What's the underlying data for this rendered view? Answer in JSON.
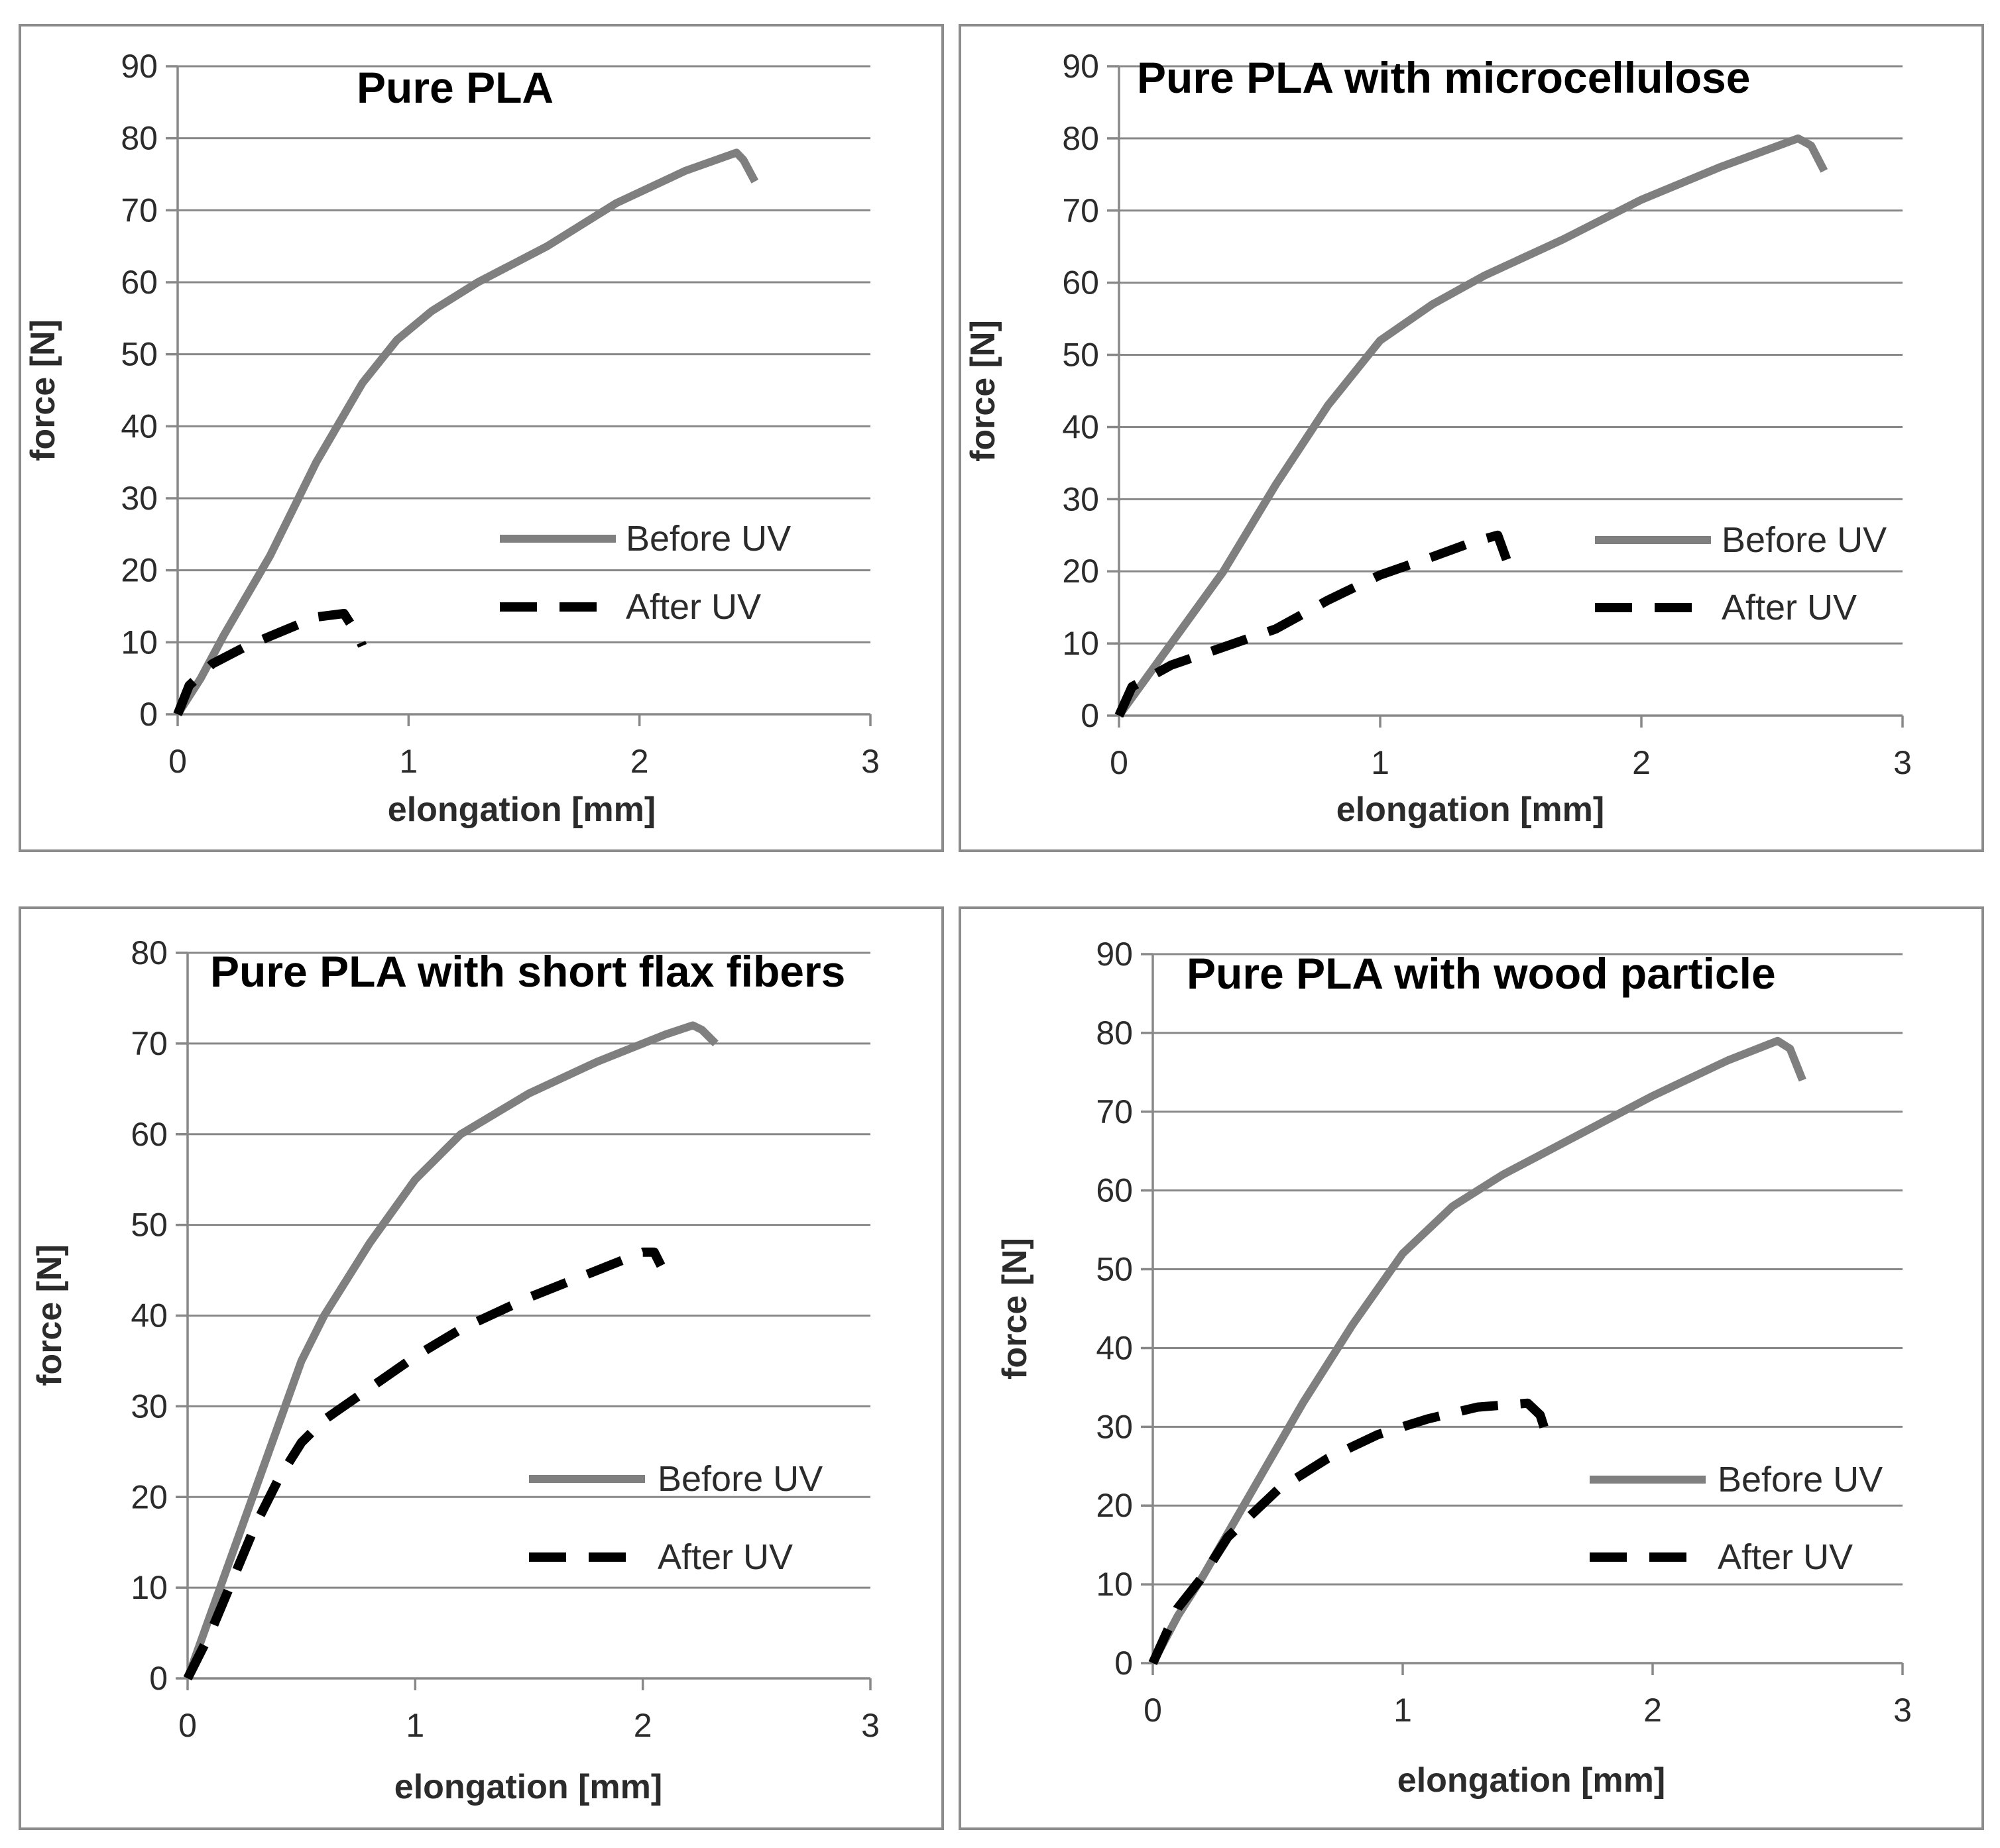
{
  "figure": {
    "colors": {
      "before_uv": "#7f7f7f",
      "after_uv": "#000000"
    }
  },
  "chart_data": [
    {
      "type": "line",
      "title": "Pure PLA",
      "xlabel": "elongation [mm]",
      "ylabel": "force [N]",
      "xlim": [
        0,
        3
      ],
      "ylim": [
        0,
        90
      ],
      "xticks": [
        "0",
        "1",
        "2",
        "3"
      ],
      "yticks": [
        "0",
        "10",
        "20",
        "30",
        "40",
        "50",
        "60",
        "70",
        "80",
        "90"
      ],
      "legend": [
        "Before UV",
        "After UV"
      ],
      "series": [
        {
          "name": "Before UV",
          "style": "solid",
          "x": [
            0,
            0.1,
            0.2,
            0.4,
            0.6,
            0.8,
            0.95,
            1.1,
            1.3,
            1.6,
            1.9,
            2.2,
            2.42,
            2.45,
            2.5
          ],
          "y": [
            0,
            5,
            11,
            22,
            35,
            46,
            52,
            56,
            60,
            65,
            71,
            75.5,
            78,
            77,
            74
          ]
        },
        {
          "name": "After UV",
          "style": "dashed",
          "x": [
            0,
            0.05,
            0.15,
            0.3,
            0.45,
            0.6,
            0.72,
            0.78,
            0.8
          ],
          "y": [
            0,
            4,
            7,
            9.5,
            11.5,
            13.5,
            14,
            11,
            9.5
          ]
        }
      ]
    },
    {
      "type": "line",
      "title": "Pure PLA with microcellulose",
      "xlabel": "elongation [mm]",
      "ylabel": "force [N]",
      "xlim": [
        0,
        3
      ],
      "ylim": [
        0,
        90
      ],
      "xticks": [
        "0",
        "1",
        "2",
        "3"
      ],
      "yticks": [
        "0",
        "10",
        "20",
        "30",
        "40",
        "50",
        "60",
        "70",
        "80",
        "90"
      ],
      "legend": [
        "Before UV",
        "After UV"
      ],
      "series": [
        {
          "name": "Before UV",
          "style": "solid",
          "x": [
            0,
            0.1,
            0.2,
            0.4,
            0.6,
            0.8,
            1.0,
            1.2,
            1.4,
            1.7,
            2.0,
            2.3,
            2.6,
            2.65,
            2.7
          ],
          "y": [
            0,
            5,
            10,
            20,
            32,
            43,
            52,
            57,
            61,
            66,
            71.5,
            76,
            80,
            79,
            75.5
          ]
        },
        {
          "name": "After UV",
          "style": "dashed",
          "x": [
            0,
            0.05,
            0.2,
            0.4,
            0.6,
            0.8,
            1.0,
            1.2,
            1.35,
            1.45,
            1.5
          ],
          "y": [
            0,
            4,
            7,
            9.5,
            12,
            16,
            19.5,
            22,
            24,
            25,
            20
          ]
        }
      ]
    },
    {
      "type": "line",
      "title": "Pure PLA with short flax fibers",
      "xlabel": "elongation [mm]",
      "ylabel": "force [N]",
      "xlim": [
        0,
        3
      ],
      "ylim": [
        0,
        80
      ],
      "xticks": [
        "0",
        "1",
        "2",
        "3"
      ],
      "yticks": [
        "0",
        "10",
        "20",
        "30",
        "40",
        "50",
        "60",
        "70",
        "80"
      ],
      "legend": [
        "Before UV",
        "After UV"
      ],
      "series": [
        {
          "name": "Before UV",
          "style": "solid",
          "x": [
            0,
            0.1,
            0.2,
            0.3,
            0.4,
            0.5,
            0.6,
            0.8,
            1.0,
            1.2,
            1.5,
            1.8,
            2.1,
            2.22,
            2.26,
            2.32
          ],
          "y": [
            0,
            7,
            14,
            21,
            28,
            35,
            40,
            48,
            55,
            60,
            64.5,
            68,
            71,
            72,
            71.5,
            70
          ]
        },
        {
          "name": "After UV",
          "style": "dashed",
          "x": [
            0,
            0.1,
            0.2,
            0.3,
            0.4,
            0.5,
            0.6,
            0.8,
            1.0,
            1.2,
            1.5,
            1.8,
            2.0,
            2.05,
            2.08
          ],
          "y": [
            0,
            5,
            11,
            17,
            22,
            26,
            28.5,
            32,
            35.5,
            38.5,
            42,
            45,
            47,
            47,
            45.5
          ]
        }
      ]
    },
    {
      "type": "line",
      "title": "Pure PLA with wood particle",
      "xlabel": "elongation [mm]",
      "ylabel": "force [N]",
      "xlim": [
        0,
        3
      ],
      "ylim": [
        0,
        90
      ],
      "xticks": [
        "0",
        "1",
        "2",
        "3"
      ],
      "yticks": [
        "0",
        "10",
        "20",
        "30",
        "40",
        "50",
        "60",
        "70",
        "80",
        "90"
      ],
      "legend": [
        "Before UV",
        "After UV"
      ],
      "series": [
        {
          "name": "Before UV",
          "style": "solid",
          "x": [
            0,
            0.1,
            0.2,
            0.4,
            0.6,
            0.8,
            1.0,
            1.2,
            1.4,
            1.7,
            2.0,
            2.3,
            2.5,
            2.55,
            2.6
          ],
          "y": [
            0,
            6,
            11,
            22,
            33,
            43,
            52,
            58,
            62,
            67,
            72,
            76.5,
            79,
            78,
            74
          ]
        },
        {
          "name": "After UV",
          "style": "dashed",
          "x": [
            0,
            0.1,
            0.2,
            0.3,
            0.5,
            0.7,
            0.9,
            1.1,
            1.3,
            1.5,
            1.55,
            1.57
          ],
          "y": [
            0,
            7,
            11,
            16,
            22,
            26,
            29,
            31,
            32.5,
            33,
            31.5,
            29.5
          ]
        }
      ]
    }
  ]
}
